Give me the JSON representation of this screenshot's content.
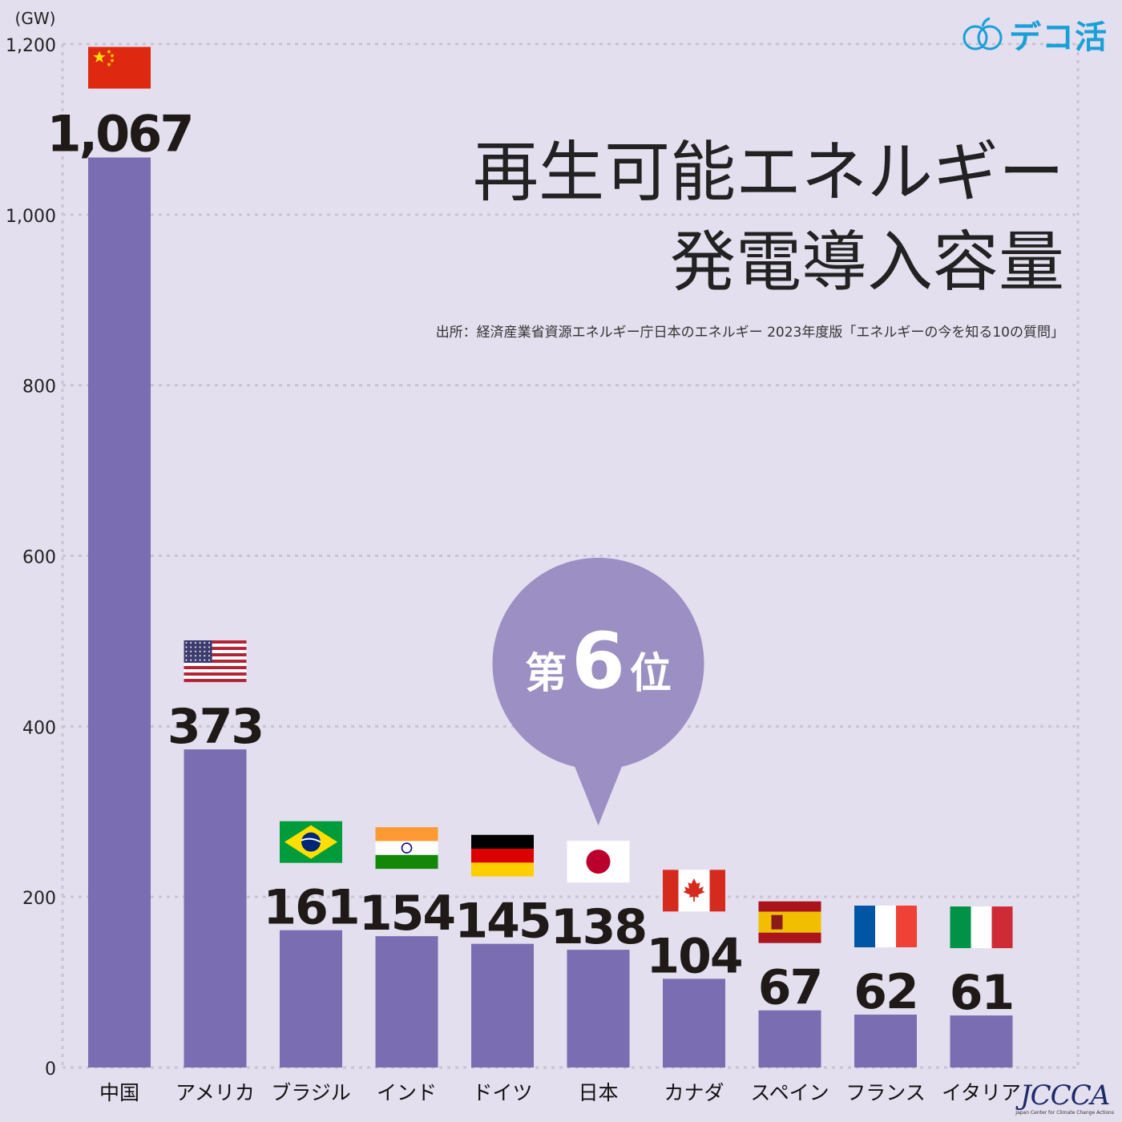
{
  "brand": {
    "logo_text": "デコ活",
    "icon": "apple-outline-icon",
    "color": "#1aa0d8"
  },
  "title": {
    "line1": "再生可能エネルギー",
    "line2": "発電導入容量"
  },
  "source": "出所：経済産業省資源エネルギー庁日本のエネルギー 2023年度版「エネルギーの今を知る10の質問」",
  "highlight": {
    "label_pre": "第",
    "rank": "6",
    "label_post": "位",
    "category": "日本",
    "color": "#9b8fc4"
  },
  "organization": {
    "name": "JCCCA",
    "subtitle": "Japan Center for Climate Change Actions"
  },
  "colors": {
    "background": "#e3dfee",
    "bar": "#7a6db1",
    "grid": "#c8c4d4"
  },
  "chart_data": {
    "type": "bar",
    "unit_label": "(GW)",
    "ylim": [
      0,
      1200
    ],
    "yticks": [
      "0",
      "200",
      "400",
      "600",
      "800",
      "1,000",
      "1,200"
    ],
    "yticks_values": [
      0,
      200,
      400,
      600,
      800,
      1000,
      1200
    ],
    "grid": true,
    "categories": [
      "中国",
      "アメリカ",
      "ブラジル",
      "インド",
      "ドイツ",
      "日本",
      "カナダ",
      "スペイン",
      "フランス",
      "イタリア"
    ],
    "values": [
      1067,
      373,
      161,
      154,
      145,
      138,
      104,
      67,
      62,
      61
    ],
    "value_labels": [
      "1,067",
      "373",
      "161",
      "154",
      "145",
      "138",
      "104",
      "67",
      "62",
      "61"
    ],
    "flags": [
      "china-flag-icon",
      "usa-flag-icon",
      "brazil-flag-icon",
      "india-flag-icon",
      "germany-flag-icon",
      "japan-flag-icon",
      "canada-flag-icon",
      "spain-flag-icon",
      "france-flag-icon",
      "italy-flag-icon"
    ]
  }
}
